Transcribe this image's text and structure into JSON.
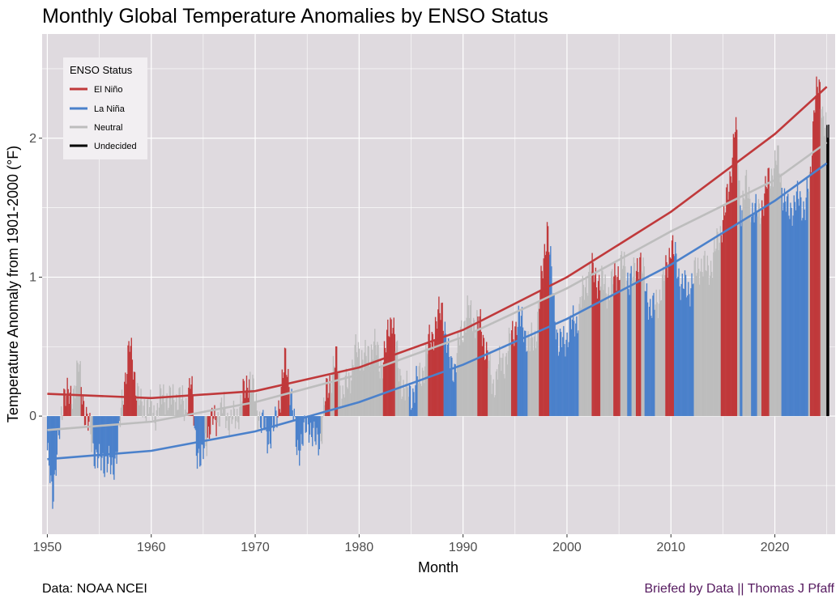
{
  "chart_data": {
    "type": "bar",
    "title": "Monthly Global Temperature Anomalies by ENSO Status",
    "xlabel": "Month",
    "ylabel": "Temperature Anomaly from 1901-2000  (°F)",
    "xlim": [
      1949.5,
      2025.8
    ],
    "ylim": [
      -0.85,
      2.75
    ],
    "x_ticks": [
      1950,
      1960,
      1970,
      1980,
      1990,
      2000,
      2010,
      2020
    ],
    "y_ticks": [
      0,
      1,
      2
    ],
    "grid": true,
    "legend": {
      "title": "ENSO Status",
      "placement": "top-left",
      "entries": [
        {
          "label": "El Niño",
          "color": "#c0393b"
        },
        {
          "label": "La Niña",
          "color": "#4b81cb"
        },
        {
          "label": "Neutral",
          "color": "#bdbdbd"
        },
        {
          "label": "Undecided",
          "color": "#000000"
        }
      ]
    },
    "colors": {
      "El Nino": "#c0393b",
      "La Nina": "#4b81cb",
      "Neutral": "#bdbdbd",
      "Undecided": "#000000",
      "panel": "#dfdadf",
      "grid": "#ffffff"
    },
    "status_periods": [
      {
        "start": 1950.0,
        "end": 1951.2,
        "status": "La Nina"
      },
      {
        "start": 1951.2,
        "end": 1951.5,
        "status": "Neutral"
      },
      {
        "start": 1951.5,
        "end": 1952.3,
        "status": "El Nino"
      },
      {
        "start": 1952.3,
        "end": 1953.2,
        "status": "Neutral"
      },
      {
        "start": 1953.2,
        "end": 1954.1,
        "status": "El Nino"
      },
      {
        "start": 1954.1,
        "end": 1954.4,
        "status": "Neutral"
      },
      {
        "start": 1954.4,
        "end": 1957.0,
        "status": "La Nina"
      },
      {
        "start": 1957.0,
        "end": 1957.3,
        "status": "Neutral"
      },
      {
        "start": 1957.3,
        "end": 1958.6,
        "status": "El Nino"
      },
      {
        "start": 1958.6,
        "end": 1963.5,
        "status": "Neutral"
      },
      {
        "start": 1963.5,
        "end": 1964.1,
        "status": "El Nino"
      },
      {
        "start": 1964.1,
        "end": 1965.1,
        "status": "La Nina"
      },
      {
        "start": 1965.1,
        "end": 1965.4,
        "status": "Neutral"
      },
      {
        "start": 1965.4,
        "end": 1966.3,
        "status": "El Nino"
      },
      {
        "start": 1966.3,
        "end": 1968.8,
        "status": "Neutral"
      },
      {
        "start": 1968.8,
        "end": 1969.5,
        "status": "El Nino"
      },
      {
        "start": 1969.5,
        "end": 1970.5,
        "status": "Neutral"
      },
      {
        "start": 1970.5,
        "end": 1972.1,
        "status": "La Nina"
      },
      {
        "start": 1972.1,
        "end": 1973.3,
        "status": "El Nino"
      },
      {
        "start": 1973.3,
        "end": 1976.3,
        "status": "La Nina"
      },
      {
        "start": 1976.3,
        "end": 1976.7,
        "status": "Neutral"
      },
      {
        "start": 1976.7,
        "end": 1977.2,
        "status": "El Nino"
      },
      {
        "start": 1977.2,
        "end": 1977.6,
        "status": "Neutral"
      },
      {
        "start": 1977.6,
        "end": 1978.0,
        "status": "El Nino"
      },
      {
        "start": 1978.0,
        "end": 1982.3,
        "status": "Neutral"
      },
      {
        "start": 1982.3,
        "end": 1983.5,
        "status": "El Nino"
      },
      {
        "start": 1983.5,
        "end": 1984.8,
        "status": "Neutral"
      },
      {
        "start": 1984.8,
        "end": 1985.6,
        "status": "La Nina"
      },
      {
        "start": 1985.6,
        "end": 1986.6,
        "status": "Neutral"
      },
      {
        "start": 1986.6,
        "end": 1988.1,
        "status": "El Nino"
      },
      {
        "start": 1988.1,
        "end": 1989.4,
        "status": "La Nina"
      },
      {
        "start": 1989.4,
        "end": 1991.4,
        "status": "Neutral"
      },
      {
        "start": 1991.4,
        "end": 1992.4,
        "status": "El Nino"
      },
      {
        "start": 1992.4,
        "end": 1994.6,
        "status": "Neutral"
      },
      {
        "start": 1994.6,
        "end": 1995.2,
        "status": "El Nino"
      },
      {
        "start": 1995.2,
        "end": 1996.2,
        "status": "La Nina"
      },
      {
        "start": 1996.2,
        "end": 1997.3,
        "status": "Neutral"
      },
      {
        "start": 1997.3,
        "end": 1998.3,
        "status": "El Nino"
      },
      {
        "start": 1998.3,
        "end": 2001.1,
        "status": "La Nina"
      },
      {
        "start": 2001.1,
        "end": 2002.4,
        "status": "Neutral"
      },
      {
        "start": 2002.4,
        "end": 2003.2,
        "status": "El Nino"
      },
      {
        "start": 2003.2,
        "end": 2004.5,
        "status": "Neutral"
      },
      {
        "start": 2004.5,
        "end": 2005.1,
        "status": "El Nino"
      },
      {
        "start": 2005.1,
        "end": 2005.8,
        "status": "Neutral"
      },
      {
        "start": 2005.8,
        "end": 2006.2,
        "status": "La Nina"
      },
      {
        "start": 2006.2,
        "end": 2006.6,
        "status": "Neutral"
      },
      {
        "start": 2006.6,
        "end": 2007.1,
        "status": "El Nino"
      },
      {
        "start": 2007.1,
        "end": 2007.5,
        "status": "Neutral"
      },
      {
        "start": 2007.5,
        "end": 2008.5,
        "status": "La Nina"
      },
      {
        "start": 2008.5,
        "end": 2009.5,
        "status": "Neutral"
      },
      {
        "start": 2009.5,
        "end": 2010.3,
        "status": "El Nino"
      },
      {
        "start": 2010.3,
        "end": 2012.2,
        "status": "La Nina"
      },
      {
        "start": 2012.2,
        "end": 2014.8,
        "status": "Neutral"
      },
      {
        "start": 2014.8,
        "end": 2016.4,
        "status": "El Nino"
      },
      {
        "start": 2016.4,
        "end": 2016.6,
        "status": "Neutral"
      },
      {
        "start": 2016.6,
        "end": 2016.9,
        "status": "La Nina"
      },
      {
        "start": 2016.9,
        "end": 2017.7,
        "status": "Neutral"
      },
      {
        "start": 2017.7,
        "end": 2018.3,
        "status": "La Nina"
      },
      {
        "start": 2018.3,
        "end": 2018.7,
        "status": "Neutral"
      },
      {
        "start": 2018.7,
        "end": 2019.5,
        "status": "El Nino"
      },
      {
        "start": 2019.5,
        "end": 2020.6,
        "status": "Neutral"
      },
      {
        "start": 2020.6,
        "end": 2023.2,
        "status": "La Nina"
      },
      {
        "start": 2023.2,
        "end": 2023.4,
        "status": "Neutral"
      },
      {
        "start": 2023.4,
        "end": 2024.4,
        "status": "El Nino"
      },
      {
        "start": 2024.4,
        "end": 2025.0,
        "status": "Neutral"
      },
      {
        "start": 2025.0,
        "end": 2025.3,
        "status": "Undecided"
      }
    ],
    "anomaly_points": [
      [
        1950.0,
        -0.3
      ],
      [
        1950.5,
        -0.55
      ],
      [
        1951.0,
        -0.25
      ],
      [
        1951.6,
        0.2
      ],
      [
        1952.2,
        0.1
      ],
      [
        1953.0,
        0.35
      ],
      [
        1953.6,
        0.05
      ],
      [
        1954.3,
        -0.2
      ],
      [
        1955.0,
        -0.35
      ],
      [
        1955.6,
        -0.3
      ],
      [
        1956.2,
        -0.4
      ],
      [
        1956.8,
        -0.2
      ],
      [
        1957.4,
        0.25
      ],
      [
        1957.9,
        0.5
      ],
      [
        1958.4,
        0.3
      ],
      [
        1959.0,
        0.05
      ],
      [
        1959.6,
        0.1
      ],
      [
        1960.2,
        0.0
      ],
      [
        1960.8,
        0.1
      ],
      [
        1961.4,
        0.15
      ],
      [
        1962.0,
        0.1
      ],
      [
        1962.6,
        0.15
      ],
      [
        1963.2,
        0.05
      ],
      [
        1963.8,
        0.25
      ],
      [
        1964.3,
        -0.2
      ],
      [
        1964.8,
        -0.35
      ],
      [
        1965.3,
        -0.15
      ],
      [
        1965.8,
        -0.05
      ],
      [
        1966.4,
        0.0
      ],
      [
        1967.0,
        0.05
      ],
      [
        1967.6,
        -0.05
      ],
      [
        1968.2,
        0.0
      ],
      [
        1968.9,
        0.15
      ],
      [
        1969.4,
        0.3
      ],
      [
        1970.0,
        0.1
      ],
      [
        1970.6,
        -0.05
      ],
      [
        1971.2,
        -0.15
      ],
      [
        1971.8,
        -0.1
      ],
      [
        1972.3,
        0.1
      ],
      [
        1972.9,
        0.4
      ],
      [
        1973.4,
        0.2
      ],
      [
        1974.0,
        -0.25
      ],
      [
        1974.6,
        -0.15
      ],
      [
        1975.2,
        -0.05
      ],
      [
        1975.8,
        -0.2
      ],
      [
        1976.3,
        -0.15
      ],
      [
        1976.8,
        0.15
      ],
      [
        1977.3,
        0.3
      ],
      [
        1977.8,
        0.4
      ],
      [
        1978.4,
        0.15
      ],
      [
        1979.0,
        0.25
      ],
      [
        1979.6,
        0.45
      ],
      [
        1980.2,
        0.45
      ],
      [
        1980.8,
        0.4
      ],
      [
        1981.4,
        0.55
      ],
      [
        1982.0,
        0.35
      ],
      [
        1982.6,
        0.5
      ],
      [
        1983.2,
        0.75
      ],
      [
        1983.8,
        0.3
      ],
      [
        1984.4,
        0.2
      ],
      [
        1985.0,
        0.15
      ],
      [
        1985.6,
        0.25
      ],
      [
        1986.2,
        0.35
      ],
      [
        1986.8,
        0.55
      ],
      [
        1987.4,
        0.65
      ],
      [
        1988.0,
        0.8
      ],
      [
        1988.6,
        0.4
      ],
      [
        1989.2,
        0.35
      ],
      [
        1989.8,
        0.6
      ],
      [
        1990.4,
        0.75
      ],
      [
        1991.0,
        0.7
      ],
      [
        1991.6,
        0.65
      ],
      [
        1992.2,
        0.5
      ],
      [
        1992.8,
        0.2
      ],
      [
        1993.4,
        0.35
      ],
      [
        1994.0,
        0.4
      ],
      [
        1994.6,
        0.55
      ],
      [
        1995.2,
        0.7
      ],
      [
        1995.8,
        0.65
      ],
      [
        1996.4,
        0.5
      ],
      [
        1997.0,
        0.6
      ],
      [
        1997.6,
        1.0
      ],
      [
        1998.1,
        1.4
      ],
      [
        1998.6,
        0.9
      ],
      [
        1999.2,
        0.5
      ],
      [
        1999.8,
        0.55
      ],
      [
        2000.4,
        0.65
      ],
      [
        2001.0,
        0.7
      ],
      [
        2001.6,
        0.9
      ],
      [
        2002.2,
        1.05
      ],
      [
        2002.8,
        1.0
      ],
      [
        2003.4,
        0.95
      ],
      [
        2004.0,
        0.9
      ],
      [
        2004.6,
        1.0
      ],
      [
        2005.2,
        1.1
      ],
      [
        2005.8,
        1.0
      ],
      [
        2006.4,
        1.0
      ],
      [
        2007.0,
        1.15
      ],
      [
        2007.6,
        0.9
      ],
      [
        2008.2,
        0.75
      ],
      [
        2008.8,
        0.85
      ],
      [
        2009.4,
        1.0
      ],
      [
        2010.0,
        1.25
      ],
      [
        2010.5,
        1.1
      ],
      [
        2011.0,
        0.95
      ],
      [
        2011.6,
        0.9
      ],
      [
        2012.2,
        1.0
      ],
      [
        2012.8,
        1.1
      ],
      [
        2013.4,
        1.05
      ],
      [
        2014.0,
        1.1
      ],
      [
        2014.6,
        1.3
      ],
      [
        2015.2,
        1.45
      ],
      [
        2015.8,
        1.8
      ],
      [
        2016.2,
        2.1
      ],
      [
        2016.7,
        1.5
      ],
      [
        2017.2,
        1.65
      ],
      [
        2017.8,
        1.5
      ],
      [
        2018.3,
        1.45
      ],
      [
        2018.9,
        1.55
      ],
      [
        2019.4,
        1.7
      ],
      [
        2019.9,
        1.8
      ],
      [
        2020.3,
        1.85
      ],
      [
        2020.8,
        1.6
      ],
      [
        2021.3,
        1.45
      ],
      [
        2021.9,
        1.55
      ],
      [
        2022.4,
        1.55
      ],
      [
        2022.9,
        1.5
      ],
      [
        2023.4,
        1.7
      ],
      [
        2023.8,
        2.3
      ],
      [
        2024.2,
        2.35
      ],
      [
        2024.6,
        2.2
      ],
      [
        2024.9,
        2.1
      ],
      [
        2025.2,
        2.0
      ]
    ],
    "trend_lines": [
      {
        "name": "El Niño",
        "color": "#c0393b",
        "x": [
          1950,
          1960,
          1970,
          1980,
          1990,
          2000,
          2010,
          2020,
          2025
        ],
        "y": [
          0.16,
          0.13,
          0.18,
          0.35,
          0.62,
          1.0,
          1.47,
          2.03,
          2.37
        ]
      },
      {
        "name": "La Niña",
        "color": "#4b81cb",
        "x": [
          1950,
          1960,
          1970,
          1980,
          1990,
          2000,
          2010,
          2020,
          2025
        ],
        "y": [
          -0.31,
          -0.25,
          -0.11,
          0.1,
          0.37,
          0.7,
          1.09,
          1.55,
          1.82
        ]
      },
      {
        "name": "Neutral",
        "color": "#bdbdbd",
        "x": [
          1950,
          1960,
          1970,
          1980,
          1990,
          2000,
          2010,
          2020,
          2025
        ],
        "y": [
          -0.1,
          -0.04,
          0.1,
          0.3,
          0.57,
          0.92,
          1.33,
          1.7,
          1.97
        ]
      }
    ]
  },
  "captions": {
    "left": "Data: NOAA NCEI",
    "right": "Briefed by Data || Thomas J Pfaff"
  }
}
